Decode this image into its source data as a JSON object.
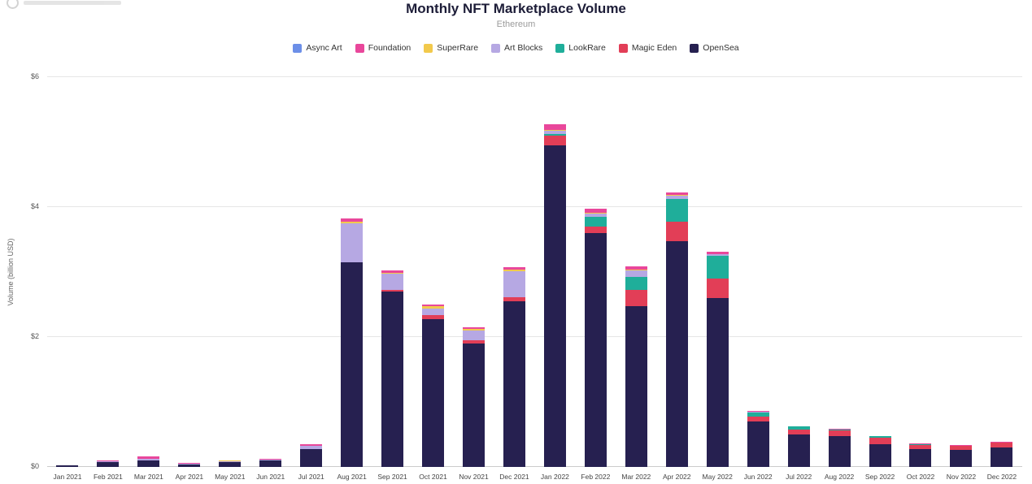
{
  "chart_data": {
    "type": "bar",
    "stacked": true,
    "title": "Monthly NFT Marketplace Volume",
    "subtitle": "Ethereum",
    "ylabel": "Volume (billion USD)",
    "ylim": [
      0,
      6
    ],
    "grid": true,
    "legend_position": "top",
    "yticks": [
      {
        "value": 0,
        "label": "$0"
      },
      {
        "value": 2,
        "label": "$2"
      },
      {
        "value": 4,
        "label": "$4"
      },
      {
        "value": 6,
        "label": "$6"
      }
    ],
    "categories": [
      "Jan 2021",
      "Feb 2021",
      "Mar 2021",
      "Apr 2021",
      "May 2021",
      "Jun 2021",
      "Jul 2021",
      "Aug 2021",
      "Sep 2021",
      "Oct 2021",
      "Nov 2021",
      "Dec 2021",
      "Jan 2022",
      "Feb 2022",
      "Mar 2022",
      "Apr 2022",
      "May 2022",
      "Jun 2022",
      "Jul 2022",
      "Aug 2022",
      "Sep 2022",
      "Oct 2022",
      "Nov 2022",
      "Dec 2022"
    ],
    "series": [
      {
        "name": "Async Art",
        "color": "#6C8FE8",
        "values": [
          0,
          0,
          0,
          0,
          0,
          0,
          0,
          0,
          0,
          0,
          0,
          0,
          0,
          0,
          0,
          0,
          0,
          0,
          0,
          0,
          0,
          0,
          0,
          0
        ]
      },
      {
        "name": "Foundation",
        "color": "#E9479B",
        "values": [
          0,
          0.01,
          0.03,
          0.01,
          0.01,
          0.01,
          0.02,
          0.05,
          0.04,
          0.03,
          0.03,
          0.03,
          0.08,
          0.06,
          0.05,
          0.04,
          0.03,
          0.01,
          0.01,
          0.01,
          0.01,
          0.01,
          0.01,
          0.01
        ]
      },
      {
        "name": "SuperRare",
        "color": "#F2C94C",
        "values": [
          0,
          0.005,
          0.01,
          0.005,
          0.005,
          0.005,
          0.01,
          0.02,
          0.02,
          0.03,
          0.02,
          0.03,
          0.02,
          0.01,
          0.01,
          0.01,
          0.01,
          0,
          0,
          0,
          0,
          0,
          0,
          0
        ]
      },
      {
        "name": "Art Blocks",
        "color": "#B6A8E3",
        "values": [
          0,
          0.005,
          0.02,
          0.01,
          0.01,
          0.01,
          0.05,
          0.6,
          0.25,
          0.1,
          0.15,
          0.4,
          0.05,
          0.05,
          0.1,
          0.05,
          0.02,
          0.01,
          0,
          0,
          0,
          0,
          0,
          0
        ]
      },
      {
        "name": "LookRare",
        "color": "#1FAE9A",
        "values": [
          0,
          0,
          0,
          0,
          0,
          0,
          0,
          0,
          0,
          0,
          0,
          0,
          0.02,
          0.15,
          0.2,
          0.35,
          0.35,
          0.06,
          0.04,
          0.02,
          0.02,
          0.01,
          0.01,
          0.01
        ]
      },
      {
        "name": "Magic Eden",
        "color": "#E23E57",
        "values": [
          0,
          0,
          0,
          0,
          0,
          0,
          0,
          0,
          0.02,
          0.06,
          0.05,
          0.06,
          0.15,
          0.1,
          0.25,
          0.3,
          0.3,
          0.08,
          0.08,
          0.08,
          0.1,
          0.07,
          0.06,
          0.07
        ]
      },
      {
        "name": "OpenSea",
        "color": "#262050",
        "values": [
          0.03,
          0.08,
          0.1,
          0.04,
          0.08,
          0.1,
          0.27,
          3.15,
          2.7,
          2.28,
          1.9,
          2.55,
          4.95,
          3.6,
          2.48,
          3.48,
          2.6,
          0.7,
          0.5,
          0.48,
          0.35,
          0.27,
          0.26,
          0.3
        ]
      }
    ]
  }
}
